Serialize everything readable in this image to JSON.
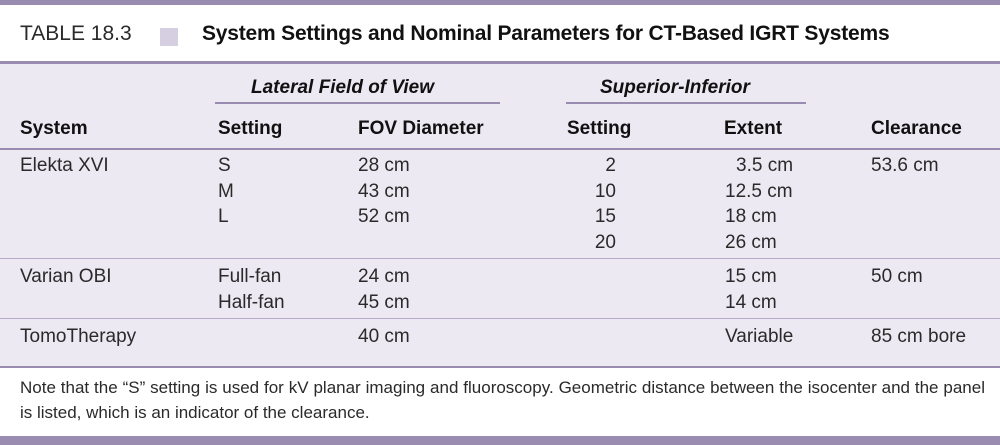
{
  "table": {
    "number": "TABLE 18.3",
    "title": "System Settings and Nominal Parameters for CT-Based IGRT Systems"
  },
  "group_headers": {
    "lateral": "Lateral Field of View",
    "superior_inferior": "Superior-Inferior"
  },
  "columns": {
    "system": "System",
    "lat_setting": "Setting",
    "fov_diameter": "FOV Diameter",
    "si_setting": "Setting",
    "extent": "Extent",
    "clearance": "Clearance"
  },
  "rows": [
    {
      "system": "Elekta XVI",
      "lat_settings": [
        "S",
        "M",
        "L"
      ],
      "fov_diameters": [
        "28 cm",
        "43 cm",
        "52 cm"
      ],
      "si_settings": [
        "2",
        "10",
        "15",
        "20"
      ],
      "extents": [
        "3.5 cm",
        "12.5 cm",
        "18 cm",
        "26 cm"
      ],
      "clearance": "53.6 cm"
    },
    {
      "system": "Varian OBI",
      "lat_settings": [
        "Full-fan",
        "Half-fan"
      ],
      "fov_diameters": [
        "24 cm",
        "45 cm"
      ],
      "si_settings": [],
      "extents": [
        "15 cm",
        "14 cm"
      ],
      "clearance": "50 cm"
    },
    {
      "system": "TomoTherapy",
      "lat_settings": [],
      "fov_diameters": [
        "40 cm"
      ],
      "si_settings": [],
      "extents": [
        "Variable"
      ],
      "clearance": "85 cm bore"
    }
  ],
  "note": "Note that the “S” setting is used for kV planar imaging and fluoroscopy. Geometric distance between the isocenter and the panel is listed, which is an indicator of the clearance.",
  "colors": {
    "rule": "#9a8cb0",
    "panel": "#ece9f3",
    "square": "#d6cfe2"
  }
}
